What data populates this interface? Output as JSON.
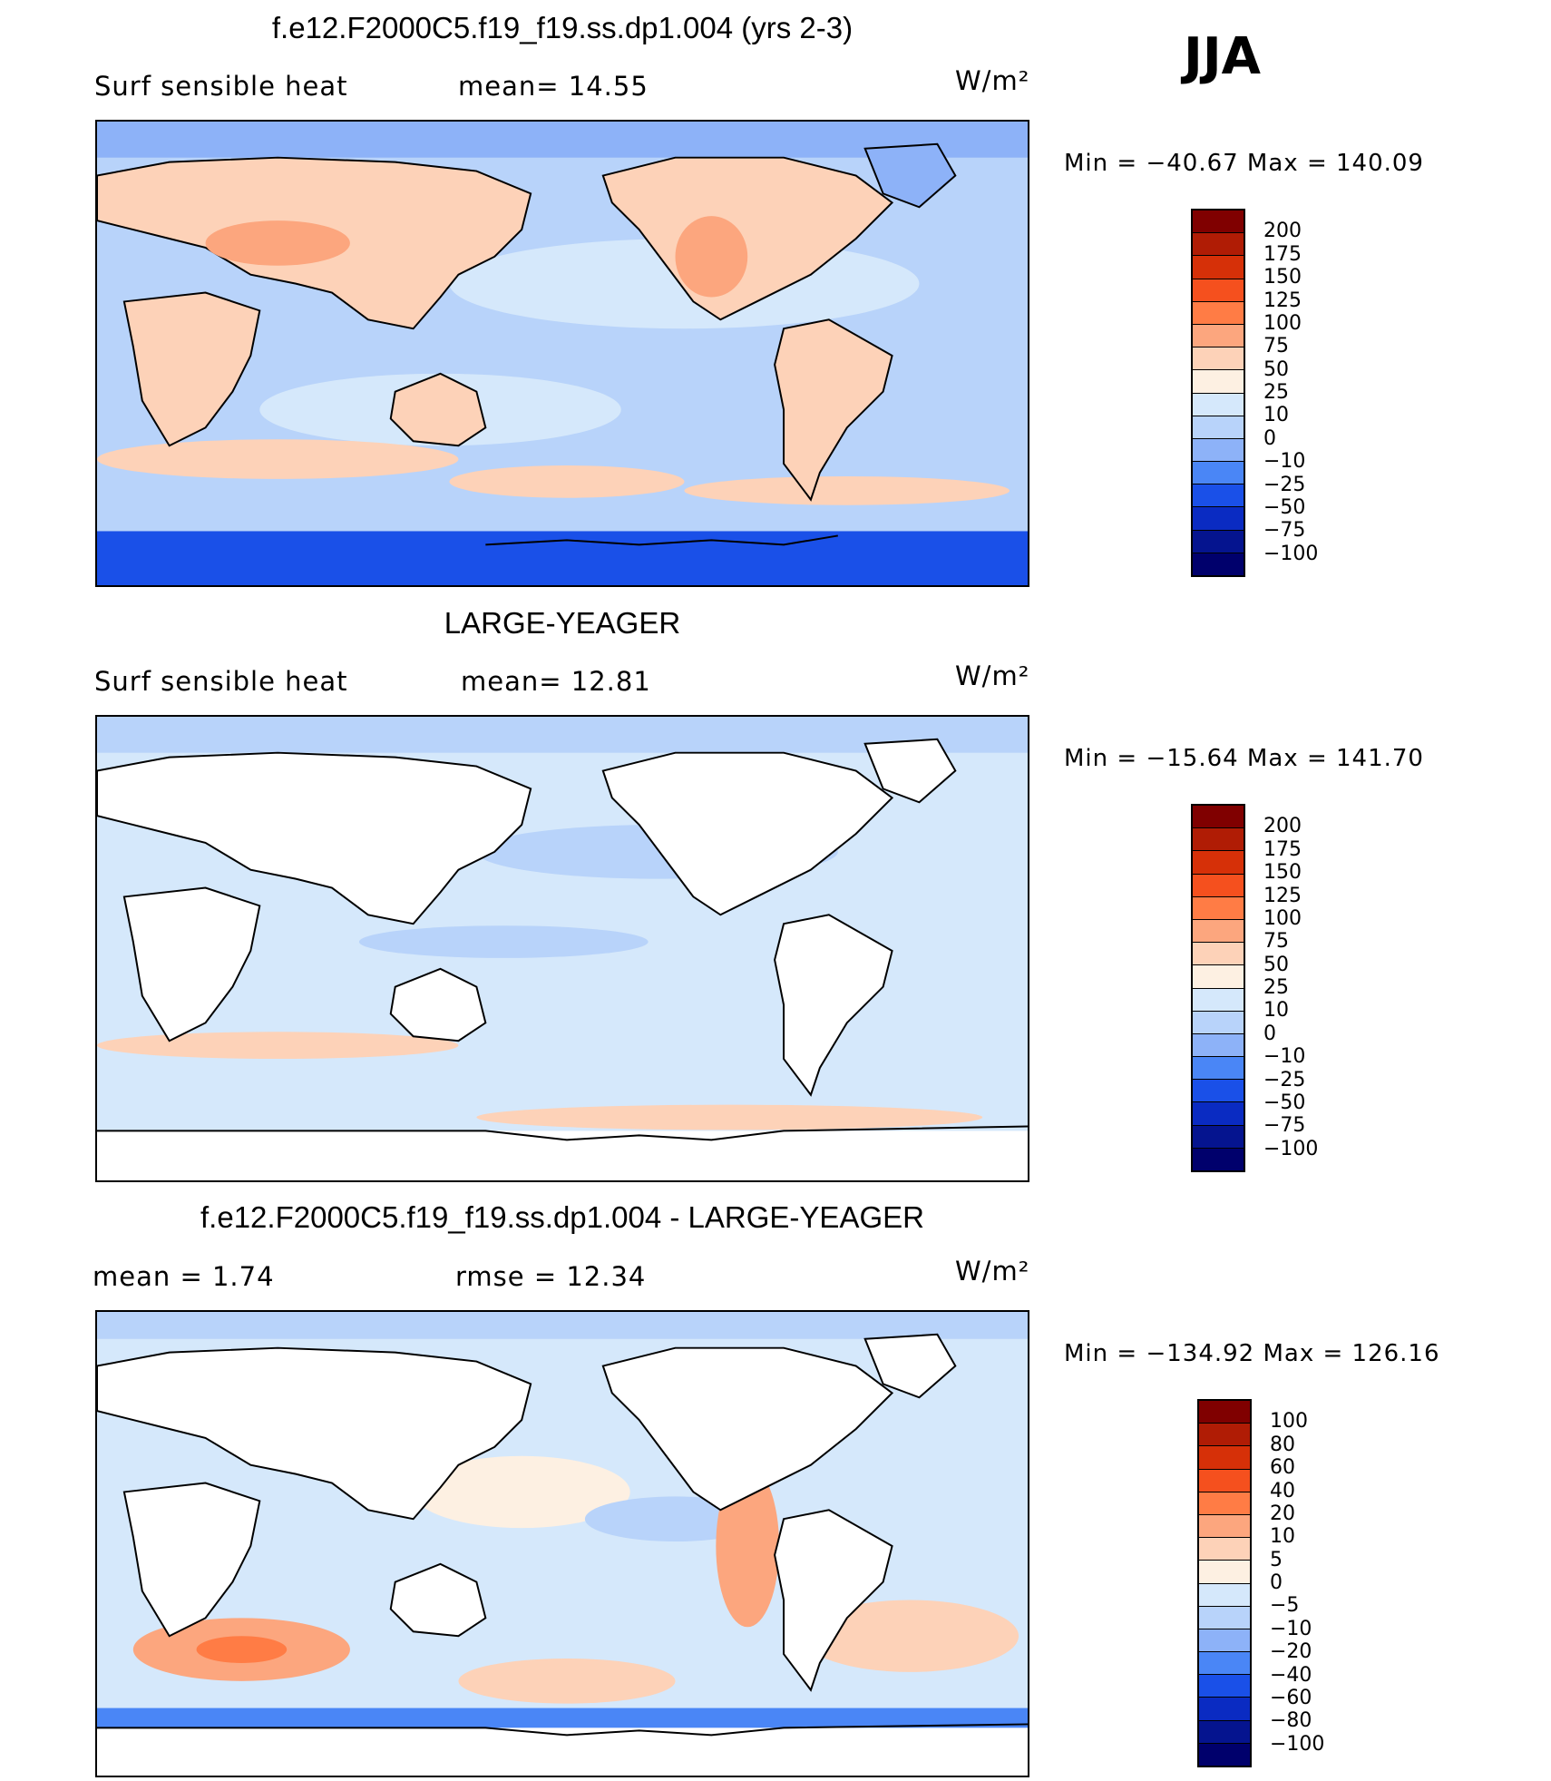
{
  "season": "JJA",
  "panels": [
    {
      "title": "f.e12.F2000C5.f19_f19.ss.dp1.004 (yrs 2-3)",
      "left_label": "Surf  sensible  heat",
      "center_label": "mean=   14.55",
      "units": "W/m²",
      "min_max": "Min  =  −40.67  Max  =  140.09",
      "colorbar_labels": [
        "200",
        "175",
        "150",
        "125",
        "100",
        "75",
        "50",
        "25",
        "10",
        "0",
        "−10",
        "−25",
        "−50",
        "−75",
        "−100"
      ],
      "colorbar_colors": [
        "#800000",
        "#b01c05",
        "#d63008",
        "#f5501e",
        "#ff7c45",
        "#fca67e",
        "#fdd2b8",
        "#fdf0e2",
        "#d5e8fb",
        "#b8d3fa",
        "#8db2f8",
        "#4a86f6",
        "#1a50e8",
        "#0a2bc2",
        "#05148f",
        "#00006c"
      ]
    },
    {
      "title": "LARGE-YEAGER",
      "left_label": "Surf  sensible  heat",
      "center_label": "mean=   12.81",
      "units": "W/m²",
      "min_max": "Min  =  −15.64  Max  =  141.70",
      "colorbar_labels": [
        "200",
        "175",
        "150",
        "125",
        "100",
        "75",
        "50",
        "25",
        "10",
        "0",
        "−10",
        "−25",
        "−50",
        "−75",
        "−100"
      ],
      "colorbar_colors": [
        "#800000",
        "#b01c05",
        "#d63008",
        "#f5501e",
        "#ff7c45",
        "#fca67e",
        "#fdd2b8",
        "#fdf0e2",
        "#d5e8fb",
        "#b8d3fa",
        "#8db2f8",
        "#4a86f6",
        "#1a50e8",
        "#0a2bc2",
        "#05148f",
        "#00006c"
      ]
    },
    {
      "title": "f.e12.F2000C5.f19_f19.ss.dp1.004 - LARGE-YEAGER",
      "left_label": "mean  =     1.74",
      "center_label": "rmse  =    12.34",
      "units": "W/m²",
      "min_max": "Min  =  −134.92  Max  =  126.16",
      "colorbar_labels": [
        "100",
        "80",
        "60",
        "40",
        "20",
        "10",
        "5",
        "0",
        "−5",
        "−10",
        "−20",
        "−40",
        "−60",
        "−80",
        "−100"
      ],
      "colorbar_colors": [
        "#800000",
        "#b01c05",
        "#d63008",
        "#f5501e",
        "#ff7c45",
        "#fca67e",
        "#fdd2b8",
        "#fdf0e2",
        "#d5e8fb",
        "#b8d3fa",
        "#8db2f8",
        "#4a86f6",
        "#1a50e8",
        "#0a2bc2",
        "#05148f",
        "#00006c"
      ]
    }
  ]
}
